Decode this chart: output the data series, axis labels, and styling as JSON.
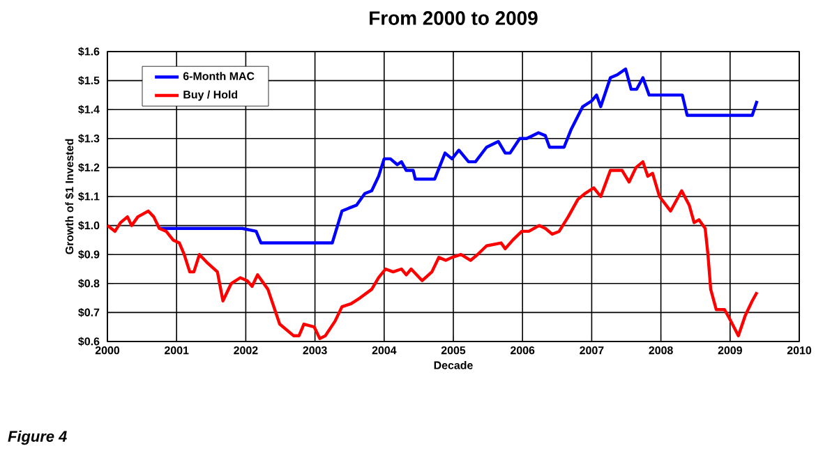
{
  "chart_data": {
    "type": "line",
    "title": "From 2000 to 2009",
    "xlabel": "Decade",
    "ylabel": "Growth of $1 Invested",
    "annotations": [
      "Figure 4"
    ],
    "xlim": [
      2000,
      2010
    ],
    "xticks": [
      2000,
      2001,
      2002,
      2003,
      2004,
      2005,
      2006,
      2007,
      2008,
      2009,
      2010
    ],
    "ylim": [
      0.6,
      1.6
    ],
    "yticks": [
      {
        "value": 0.6,
        "label": "$0.6"
      },
      {
        "value": 0.7,
        "label": "$0.7"
      },
      {
        "value": 0.8,
        "label": "$0.8"
      },
      {
        "value": 0.9,
        "label": "$0.9"
      },
      {
        "value": 1.0,
        "label": "$1.0"
      },
      {
        "value": 1.1,
        "label": "$1.1"
      },
      {
        "value": 1.2,
        "label": "$1.2"
      },
      {
        "value": 1.3,
        "label": "$1.3"
      },
      {
        "value": 1.4,
        "label": "$1.4"
      },
      {
        "value": 1.5,
        "label": "$1.5"
      },
      {
        "value": 1.6,
        "label": "$1.6"
      }
    ],
    "grid": true,
    "legend": "top left",
    "marker": "none",
    "line_style": "solid",
    "series": [
      {
        "name": "6-Month MAC",
        "color": "#0000ff",
        "x": [
          2000.75,
          2001.95,
          2002.15,
          2002.22,
          2003.25,
          2003.39,
          2003.49,
          2003.6,
          2003.72,
          2003.82,
          2003.92,
          2004.0,
          2004.09,
          2004.19,
          2004.25,
          2004.32,
          2004.42,
          2004.45,
          2004.73,
          2004.88,
          2004.98,
          2005.08,
          2005.22,
          2005.32,
          2005.48,
          2005.65,
          2005.75,
          2005.82,
          2005.96,
          2006.06,
          2006.23,
          2006.33,
          2006.39,
          2006.6,
          2006.7,
          2006.87,
          2007.0,
          2007.07,
          2007.13,
          2007.27,
          2007.37,
          2007.49,
          2007.57,
          2007.65,
          2007.74,
          2007.83,
          2008.31,
          2008.38,
          2009.32,
          2009.39
        ],
        "values": [
          0.99,
          0.99,
          0.98,
          0.94,
          0.94,
          1.05,
          1.06,
          1.07,
          1.11,
          1.12,
          1.17,
          1.23,
          1.23,
          1.21,
          1.22,
          1.19,
          1.19,
          1.16,
          1.16,
          1.25,
          1.23,
          1.26,
          1.22,
          1.22,
          1.27,
          1.29,
          1.25,
          1.25,
          1.3,
          1.3,
          1.32,
          1.31,
          1.27,
          1.27,
          1.33,
          1.41,
          1.43,
          1.45,
          1.41,
          1.51,
          1.52,
          1.54,
          1.47,
          1.47,
          1.51,
          1.45,
          1.45,
          1.38,
          1.38,
          1.43
        ]
      },
      {
        "name": "Buy / Hold",
        "color": "#ff0000",
        "x": [
          2000.0,
          2000.11,
          2000.19,
          2000.29,
          2000.35,
          2000.44,
          2000.59,
          2000.67,
          2000.75,
          2000.85,
          2000.95,
          2001.04,
          2001.11,
          2001.19,
          2001.25,
          2001.33,
          2001.45,
          2001.59,
          2001.67,
          2001.79,
          2001.92,
          2002.02,
          2002.09,
          2002.17,
          2002.32,
          2002.49,
          2002.69,
          2002.77,
          2002.84,
          2002.99,
          2003.07,
          2003.15,
          2003.29,
          2003.39,
          2003.52,
          2003.65,
          2003.82,
          2003.92,
          2004.02,
          2004.13,
          2004.25,
          2004.32,
          2004.39,
          2004.55,
          2004.69,
          2004.79,
          2004.89,
          2004.98,
          2005.11,
          2005.25,
          2005.35,
          2005.48,
          2005.69,
          2005.75,
          2005.86,
          2005.99,
          2006.09,
          2006.24,
          2006.33,
          2006.43,
          2006.53,
          2006.66,
          2006.8,
          2006.9,
          2007.03,
          2007.13,
          2007.27,
          2007.44,
          2007.54,
          2007.64,
          2007.74,
          2007.81,
          2007.88,
          2007.98,
          2008.14,
          2008.3,
          2008.41,
          2008.48,
          2008.55,
          2008.64,
          2008.68,
          2008.72,
          2008.8,
          2008.92,
          2008.99,
          2009.12,
          2009.22,
          2009.32,
          2009.39
        ],
        "values": [
          1.0,
          0.98,
          1.01,
          1.03,
          1.0,
          1.03,
          1.05,
          1.03,
          0.99,
          0.98,
          0.95,
          0.94,
          0.9,
          0.84,
          0.84,
          0.9,
          0.87,
          0.84,
          0.74,
          0.8,
          0.82,
          0.81,
          0.79,
          0.83,
          0.78,
          0.66,
          0.62,
          0.62,
          0.66,
          0.65,
          0.61,
          0.62,
          0.67,
          0.72,
          0.73,
          0.75,
          0.78,
          0.82,
          0.85,
          0.84,
          0.85,
          0.83,
          0.85,
          0.81,
          0.84,
          0.89,
          0.88,
          0.89,
          0.9,
          0.88,
          0.9,
          0.93,
          0.94,
          0.92,
          0.95,
          0.98,
          0.98,
          1.0,
          0.99,
          0.97,
          0.98,
          1.03,
          1.09,
          1.11,
          1.13,
          1.1,
          1.19,
          1.19,
          1.15,
          1.2,
          1.22,
          1.17,
          1.18,
          1.1,
          1.05,
          1.12,
          1.07,
          1.01,
          1.02,
          0.99,
          0.9,
          0.78,
          0.71,
          0.71,
          0.68,
          0.62,
          0.69,
          0.74,
          0.77
        ]
      }
    ]
  }
}
